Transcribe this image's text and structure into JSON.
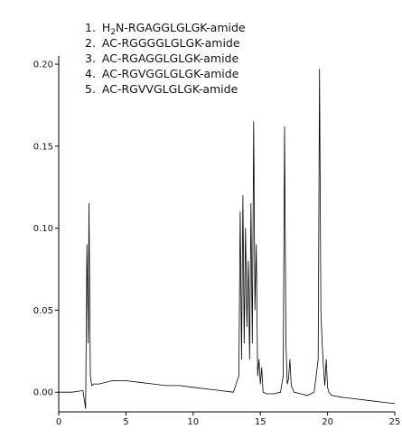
{
  "chart_data": {
    "type": "line",
    "title": "",
    "xlabel": "",
    "ylabel": "",
    "xlim": [
      0,
      25
    ],
    "ylim": [
      -0.012,
      0.205
    ],
    "x_ticks": [
      0,
      5,
      10,
      15,
      20,
      25
    ],
    "y_ticks": [
      0.0,
      0.05,
      0.1,
      0.15,
      0.2
    ],
    "x_tick_labels": [
      "0",
      "5",
      "10",
      "15",
      "20",
      "25"
    ],
    "y_tick_labels": [
      "0.00",
      "0.05",
      "0.10",
      "0.15",
      "0.20"
    ],
    "grid": false,
    "legend": {
      "placement": "top-center",
      "items": [
        {
          "number": "1.",
          "prefix": "H",
          "sub": "2",
          "suffix": "N-RGAGGLGLGK-amide"
        },
        {
          "number": "2.",
          "prefix": "AC-RGGGGLGLGK-amide",
          "sub": "",
          "suffix": ""
        },
        {
          "number": "3.",
          "prefix": "AC-RGAGGLGLGK-amide",
          "sub": "",
          "suffix": ""
        },
        {
          "number": "4.",
          "prefix": "AC-RGVGGLGLGK-amide",
          "sub": "",
          "suffix": ""
        },
        {
          "number": "5.",
          "prefix": "AC-RGVVGLGLGK-amide",
          "sub": "",
          "suffix": ""
        }
      ]
    },
    "series": [
      {
        "values_x": [
          0,
          1,
          1.8,
          2.0,
          2.1,
          2.2,
          2.25,
          2.35,
          2.45,
          2.6,
          3,
          4,
          5,
          6,
          7,
          8,
          9,
          10,
          11,
          12,
          13,
          13.4,
          13.5,
          13.6,
          13.7,
          13.8,
          13.9,
          14.0,
          14.1,
          14.2,
          14.3,
          14.4,
          14.5,
          14.6,
          14.7,
          14.8,
          14.9,
          15.0,
          15.1,
          15.2,
          15.5,
          16,
          16.5,
          16.7,
          16.8,
          16.9,
          17.0,
          17.1,
          17.2,
          17.3,
          17.5,
          18,
          18.5,
          19,
          19.3,
          19.4,
          19.5,
          19.6,
          19.7,
          19.8,
          19.9,
          20.0,
          20.1,
          20.3,
          21,
          22,
          23,
          24,
          25
        ],
        "values_y": [
          0.0,
          0.0,
          0.001,
          -0.01,
          0.09,
          0.03,
          0.115,
          0.01,
          0.004,
          0.005,
          0.005,
          0.007,
          0.007,
          0.006,
          0.005,
          0.004,
          0.004,
          0.003,
          0.002,
          0.001,
          0.0,
          0.01,
          0.11,
          0.02,
          0.12,
          0.03,
          0.1,
          0.04,
          0.08,
          0.02,
          0.115,
          0.03,
          0.165,
          0.05,
          0.09,
          0.01,
          0.02,
          0.005,
          0.015,
          0.0,
          -0.001,
          -0.001,
          0.0,
          0.01,
          0.162,
          0.03,
          0.005,
          0.008,
          0.02,
          0.004,
          0.0,
          -0.001,
          -0.002,
          0.0,
          0.02,
          0.197,
          0.05,
          0.03,
          0.015,
          0.004,
          0.02,
          0.003,
          0.0,
          -0.002,
          -0.003,
          -0.004,
          -0.005,
          -0.006,
          -0.007
        ]
      }
    ]
  }
}
